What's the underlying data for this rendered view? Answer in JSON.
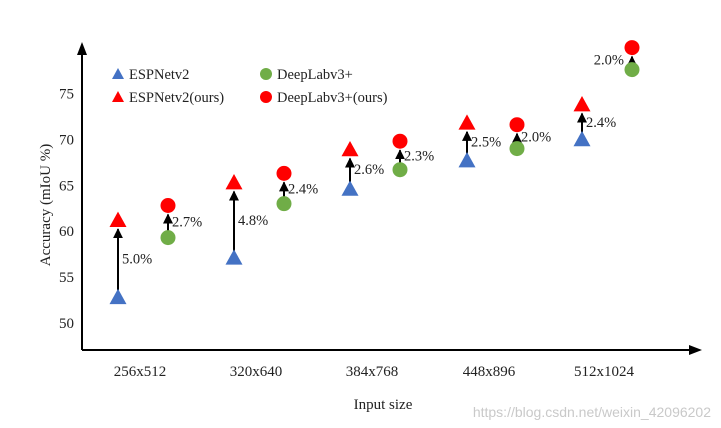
{
  "chart_data": {
    "type": "scatter",
    "title": "",
    "xlabel": "Input size",
    "ylabel": "Accuracy (mIoU %)",
    "categories": [
      "256x512",
      "320x640",
      "384x768",
      "448x896",
      "512x1024"
    ],
    "yticks": [
      50,
      55,
      60,
      65,
      70,
      75
    ],
    "ylim": [
      48,
      80
    ],
    "grid": false,
    "legend_position": "top-left",
    "series": [
      {
        "name": "ESPNetv2",
        "marker": "triangle",
        "color": "#4472c4",
        "group": "espnet",
        "values": [
          52.8,
          57.1,
          64.6,
          67.7,
          70.0
        ]
      },
      {
        "name": "DeepLabv3+",
        "marker": "circle",
        "color": "#70ad47",
        "group": "deeplab",
        "values": [
          59.3,
          63.0,
          66.7,
          69.0,
          77.6
        ]
      },
      {
        "name": "ESPNetv2(ours)",
        "marker": "triangle",
        "color": "#ff0000",
        "group": "espnet",
        "values": [
          61.2,
          65.3,
          68.9,
          71.8,
          73.8
        ]
      },
      {
        "name": "DeepLabv3+(ours)",
        "marker": "circle",
        "color": "#ff0000",
        "group": "deeplab",
        "values": [
          62.8,
          66.3,
          69.8,
          71.6,
          80.0
        ]
      }
    ],
    "annotations": {
      "espnet": [
        "5.0%",
        "4.8%",
        "2.6%",
        "2.5%",
        "2.4%"
      ],
      "deeplab": [
        "2.7%",
        "2.4%",
        "2.3%",
        "2.0%",
        "2.0%"
      ]
    }
  },
  "watermark": "https://blog.csdn.net/weixin_42096202"
}
